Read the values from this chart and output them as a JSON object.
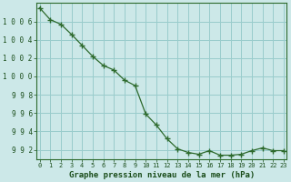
{
  "x": [
    0,
    1,
    2,
    3,
    4,
    5,
    6,
    7,
    8,
    9,
    10,
    11,
    12,
    13,
    14,
    15,
    16,
    17,
    18,
    19,
    20,
    21,
    22,
    23
  ],
  "y": [
    1007.5,
    1006.2,
    1005.7,
    1004.6,
    1003.4,
    1002.2,
    1001.2,
    1000.7,
    999.6,
    999.0,
    995.9,
    994.7,
    993.2,
    992.1,
    991.7,
    991.5,
    991.9,
    991.4,
    991.4,
    991.5,
    991.9,
    992.2,
    991.9,
    991.9
  ],
  "line_color": "#2d6a2d",
  "marker": "+",
  "marker_color": "#2d6a2d",
  "bg_color": "#cce8e8",
  "grid_color": "#99cccc",
  "xlabel": "Graphe pression niveau de la mer (hPa)",
  "xlabel_color": "#1a4d1a",
  "tick_color": "#1a4d1a",
  "axis_color": "#2d6a2d",
  "ylim": [
    991.0,
    1008.0
  ],
  "yticks": [
    992,
    994,
    996,
    998,
    1000,
    1002,
    1004,
    1006
  ],
  "ytick_labels": [
    "992",
    "994",
    "996",
    "998",
    "1000",
    "1002",
    "1004",
    "1006"
  ],
  "xticks": [
    0,
    1,
    2,
    3,
    4,
    5,
    6,
    7,
    8,
    9,
    10,
    11,
    12,
    13,
    14,
    15,
    16,
    17,
    18,
    19,
    20,
    21,
    22,
    23
  ],
  "xlim": [
    -0.3,
    23.3
  ]
}
